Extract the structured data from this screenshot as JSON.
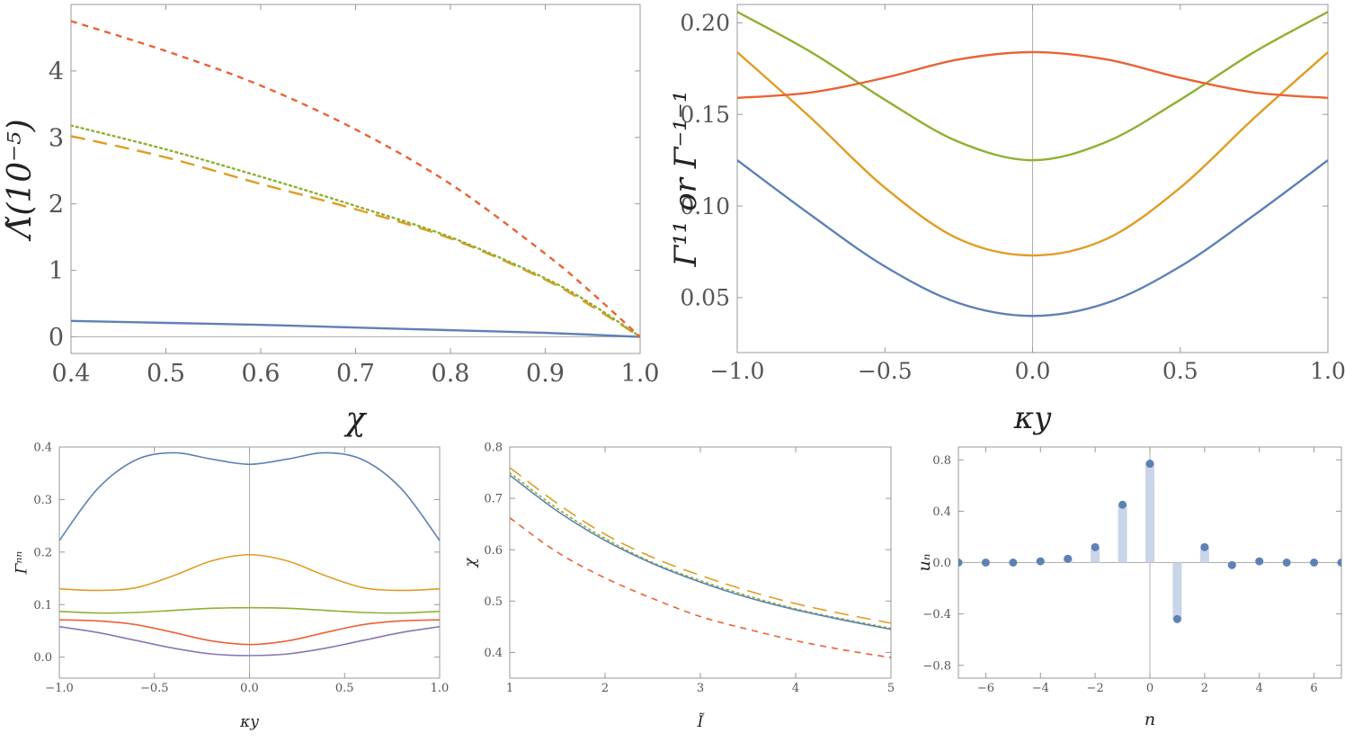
{
  "colors": {
    "blue": "#5e81b5",
    "orange": "#e19c24",
    "green": "#8fb032",
    "red": "#eb6235",
    "purple": "#8778b3",
    "stem": "#c9d5e8",
    "axis": "#888888",
    "frame": "#999999"
  },
  "chart_data": [
    {
      "id": "a",
      "type": "line",
      "xlabel": "χ",
      "ylabel": "Λ̃(10⁻⁵)",
      "xlim": [
        0.4,
        1.0
      ],
      "ylim": [
        -0.25,
        5.0
      ],
      "xticks": [
        0.4,
        0.5,
        0.6,
        0.7,
        0.8,
        0.9,
        1.0
      ],
      "xtick_labels": [
        "0.4",
        "0.5",
        "0.6",
        "0.7",
        "0.8",
        "0.9",
        "1.0"
      ],
      "yticks": [
        0,
        1,
        2,
        3,
        4
      ],
      "ytick_labels": [
        "0",
        "1",
        "2",
        "3",
        "4"
      ],
      "series": [
        {
          "color": "blue",
          "style": "solid",
          "x": [
            0.4,
            0.5,
            0.6,
            0.7,
            0.8,
            0.9,
            1.0
          ],
          "y": [
            0.24,
            0.21,
            0.18,
            0.14,
            0.1,
            0.06,
            0.0
          ]
        },
        {
          "color": "orange",
          "style": "longdash",
          "x": [
            0.4,
            0.5,
            0.6,
            0.7,
            0.8,
            0.9,
            0.95,
            1.0
          ],
          "y": [
            3.02,
            2.7,
            2.3,
            1.92,
            1.48,
            0.86,
            0.45,
            0.0
          ]
        },
        {
          "color": "green",
          "style": "dotted",
          "x": [
            0.4,
            0.5,
            0.6,
            0.7,
            0.8,
            0.9,
            0.95,
            1.0
          ],
          "y": [
            3.18,
            2.82,
            2.41,
            1.97,
            1.5,
            0.88,
            0.48,
            0.0
          ]
        },
        {
          "color": "red",
          "style": "shortdash",
          "x": [
            0.4,
            0.5,
            0.6,
            0.7,
            0.8,
            0.9,
            0.95,
            1.0
          ],
          "y": [
            4.75,
            4.3,
            3.78,
            3.12,
            2.3,
            1.25,
            0.65,
            0.0
          ]
        }
      ]
    },
    {
      "id": "b",
      "type": "line",
      "xlabel": "κy",
      "ylabel": "Γ¹¹ or Γ⁻¹⁻¹",
      "xlim": [
        -1.0,
        1.0
      ],
      "ylim": [
        0.02,
        0.21
      ],
      "xticks": [
        -1.0,
        -0.5,
        0.0,
        0.5,
        1.0
      ],
      "xtick_labels": [
        "−1.0",
        "−0.5",
        "0.0",
        "0.5",
        "1.0"
      ],
      "yticks": [
        0.05,
        0.1,
        0.15,
        0.2
      ],
      "ytick_labels": [
        "0.05",
        "0.10",
        "0.15",
        "0.20"
      ],
      "series": [
        {
          "color": "blue",
          "style": "solid",
          "x": [
            -1.0,
            -0.75,
            -0.5,
            -0.25,
            0.0,
            0.25,
            0.5,
            0.75,
            1.0
          ],
          "y": [
            0.125,
            0.095,
            0.067,
            0.047,
            0.04,
            0.047,
            0.067,
            0.095,
            0.125
          ]
        },
        {
          "color": "orange",
          "style": "solid",
          "x": [
            -1.0,
            -0.75,
            -0.5,
            -0.25,
            0.0,
            0.25,
            0.5,
            0.75,
            1.0
          ],
          "y": [
            0.184,
            0.148,
            0.11,
            0.082,
            0.073,
            0.082,
            0.11,
            0.148,
            0.184
          ]
        },
        {
          "color": "green",
          "style": "solid",
          "x": [
            -1.0,
            -0.75,
            -0.5,
            -0.25,
            0.0,
            0.25,
            0.5,
            0.75,
            1.0
          ],
          "y": [
            0.206,
            0.184,
            0.158,
            0.135,
            0.125,
            0.135,
            0.158,
            0.184,
            0.206
          ]
        },
        {
          "color": "red",
          "style": "solid",
          "x": [
            -1.0,
            -0.75,
            -0.5,
            -0.25,
            0.0,
            0.25,
            0.5,
            0.75,
            1.0
          ],
          "y": [
            0.159,
            0.162,
            0.17,
            0.18,
            0.184,
            0.18,
            0.17,
            0.162,
            0.159
          ]
        }
      ]
    },
    {
      "id": "c",
      "type": "line",
      "xlabel": "κy",
      "ylabel": "Γⁿⁿ",
      "xlim": [
        -1.0,
        1.0
      ],
      "ylim": [
        -0.04,
        0.4
      ],
      "xticks": [
        -1.0,
        -0.5,
        0.0,
        0.5,
        1.0
      ],
      "xtick_labels": [
        "−1.0",
        "−0.5",
        "0.0",
        "0.5",
        "1.0"
      ],
      "yticks": [
        0.0,
        0.1,
        0.2,
        0.3,
        0.4
      ],
      "ytick_labels": [
        "0.0",
        "0.1",
        "0.2",
        "0.3",
        "0.4"
      ],
      "series": [
        {
          "color": "blue",
          "style": "solid",
          "x": [
            -1.0,
            -0.8,
            -0.6,
            -0.4,
            -0.2,
            0.0,
            0.2,
            0.4,
            0.6,
            0.8,
            1.0
          ],
          "y": [
            0.222,
            0.32,
            0.375,
            0.389,
            0.377,
            0.367,
            0.377,
            0.389,
            0.375,
            0.32,
            0.222
          ]
        },
        {
          "color": "orange",
          "style": "solid",
          "x": [
            -1.0,
            -0.8,
            -0.6,
            -0.4,
            -0.2,
            0.0,
            0.2,
            0.4,
            0.6,
            0.8,
            1.0
          ],
          "y": [
            0.13,
            0.127,
            0.132,
            0.155,
            0.183,
            0.195,
            0.183,
            0.155,
            0.132,
            0.127,
            0.13
          ]
        },
        {
          "color": "green",
          "style": "solid",
          "x": [
            -1.0,
            -0.8,
            -0.6,
            -0.4,
            -0.2,
            0.0,
            0.2,
            0.4,
            0.6,
            0.8,
            1.0
          ],
          "y": [
            0.087,
            0.084,
            0.085,
            0.089,
            0.093,
            0.094,
            0.093,
            0.089,
            0.085,
            0.084,
            0.087
          ]
        },
        {
          "color": "red",
          "style": "solid",
          "x": [
            -1.0,
            -0.8,
            -0.6,
            -0.4,
            -0.2,
            0.0,
            0.2,
            0.4,
            0.6,
            0.8,
            1.0
          ],
          "y": [
            0.071,
            0.069,
            0.062,
            0.047,
            0.031,
            0.024,
            0.031,
            0.047,
            0.062,
            0.069,
            0.071
          ]
        },
        {
          "color": "purple",
          "style": "solid",
          "x": [
            -1.0,
            -0.8,
            -0.6,
            -0.4,
            -0.2,
            0.0,
            0.2,
            0.4,
            0.6,
            0.8,
            1.0
          ],
          "y": [
            0.058,
            0.047,
            0.032,
            0.017,
            0.006,
            0.003,
            0.006,
            0.017,
            0.032,
            0.047,
            0.058
          ]
        }
      ]
    },
    {
      "id": "d",
      "type": "line",
      "xlabel": "Ĩ",
      "ylabel": "χ",
      "xlim": [
        1,
        5
      ],
      "ylim": [
        0.35,
        0.8
      ],
      "xticks": [
        1,
        2,
        3,
        4,
        5
      ],
      "xtick_labels": [
        "1",
        "2",
        "3",
        "4",
        "5"
      ],
      "yticks": [
        0.4,
        0.5,
        0.6,
        0.7,
        0.8
      ],
      "ytick_labels": [
        "0.4",
        "0.5",
        "0.6",
        "0.7",
        "0.8"
      ],
      "series": [
        {
          "color": "orange",
          "style": "longdash",
          "x": [
            1.0,
            1.5,
            2.0,
            2.5,
            3.0,
            3.5,
            4.0,
            4.5,
            5.0
          ],
          "y": [
            0.76,
            0.69,
            0.63,
            0.585,
            0.55,
            0.52,
            0.495,
            0.475,
            0.457
          ]
        },
        {
          "color": "green",
          "style": "dotted",
          "x": [
            1.0,
            1.5,
            2.0,
            2.5,
            3.0,
            3.5,
            4.0,
            4.5,
            5.0
          ],
          "y": [
            0.75,
            0.68,
            0.622,
            0.575,
            0.54,
            0.51,
            0.485,
            0.465,
            0.447
          ]
        },
        {
          "color": "blue",
          "style": "solid",
          "x": [
            1.0,
            1.5,
            2.0,
            2.5,
            3.0,
            3.5,
            4.0,
            4.5,
            5.0
          ],
          "y": [
            0.745,
            0.675,
            0.618,
            0.573,
            0.537,
            0.507,
            0.483,
            0.463,
            0.445
          ]
        },
        {
          "color": "red",
          "style": "shortdash",
          "x": [
            1.0,
            1.5,
            2.0,
            2.5,
            3.0,
            3.5,
            4.0,
            4.5,
            5.0
          ],
          "y": [
            0.662,
            0.595,
            0.545,
            0.505,
            0.47,
            0.445,
            0.423,
            0.405,
            0.39
          ]
        }
      ]
    },
    {
      "id": "e",
      "type": "scatter",
      "xlabel": "n",
      "ylabel": "uₙ",
      "xlim": [
        -7,
        7
      ],
      "ylim": [
        -0.9,
        0.9
      ],
      "xticks": [
        -6,
        -4,
        -2,
        0,
        2,
        4,
        6
      ],
      "xtick_labels": [
        "−6",
        "−4",
        "−2",
        "0",
        "2",
        "4",
        "6"
      ],
      "yticks": [
        -0.8,
        -0.4,
        0.0,
        0.4,
        0.8
      ],
      "ytick_labels": [
        "−0.8",
        "−0.4",
        "0.0",
        "0.4",
        "0.8"
      ],
      "series": [
        {
          "color": "blue",
          "style": "stem",
          "x": [
            -7,
            -6,
            -5,
            -4,
            -3,
            -2,
            -1,
            0,
            1,
            2,
            3,
            4,
            5,
            6,
            7
          ],
          "y": [
            0.0,
            0.0,
            0.0,
            0.01,
            0.03,
            0.12,
            0.45,
            0.77,
            -0.44,
            0.12,
            -0.02,
            0.01,
            0.0,
            0.0,
            0.0
          ]
        }
      ]
    }
  ]
}
